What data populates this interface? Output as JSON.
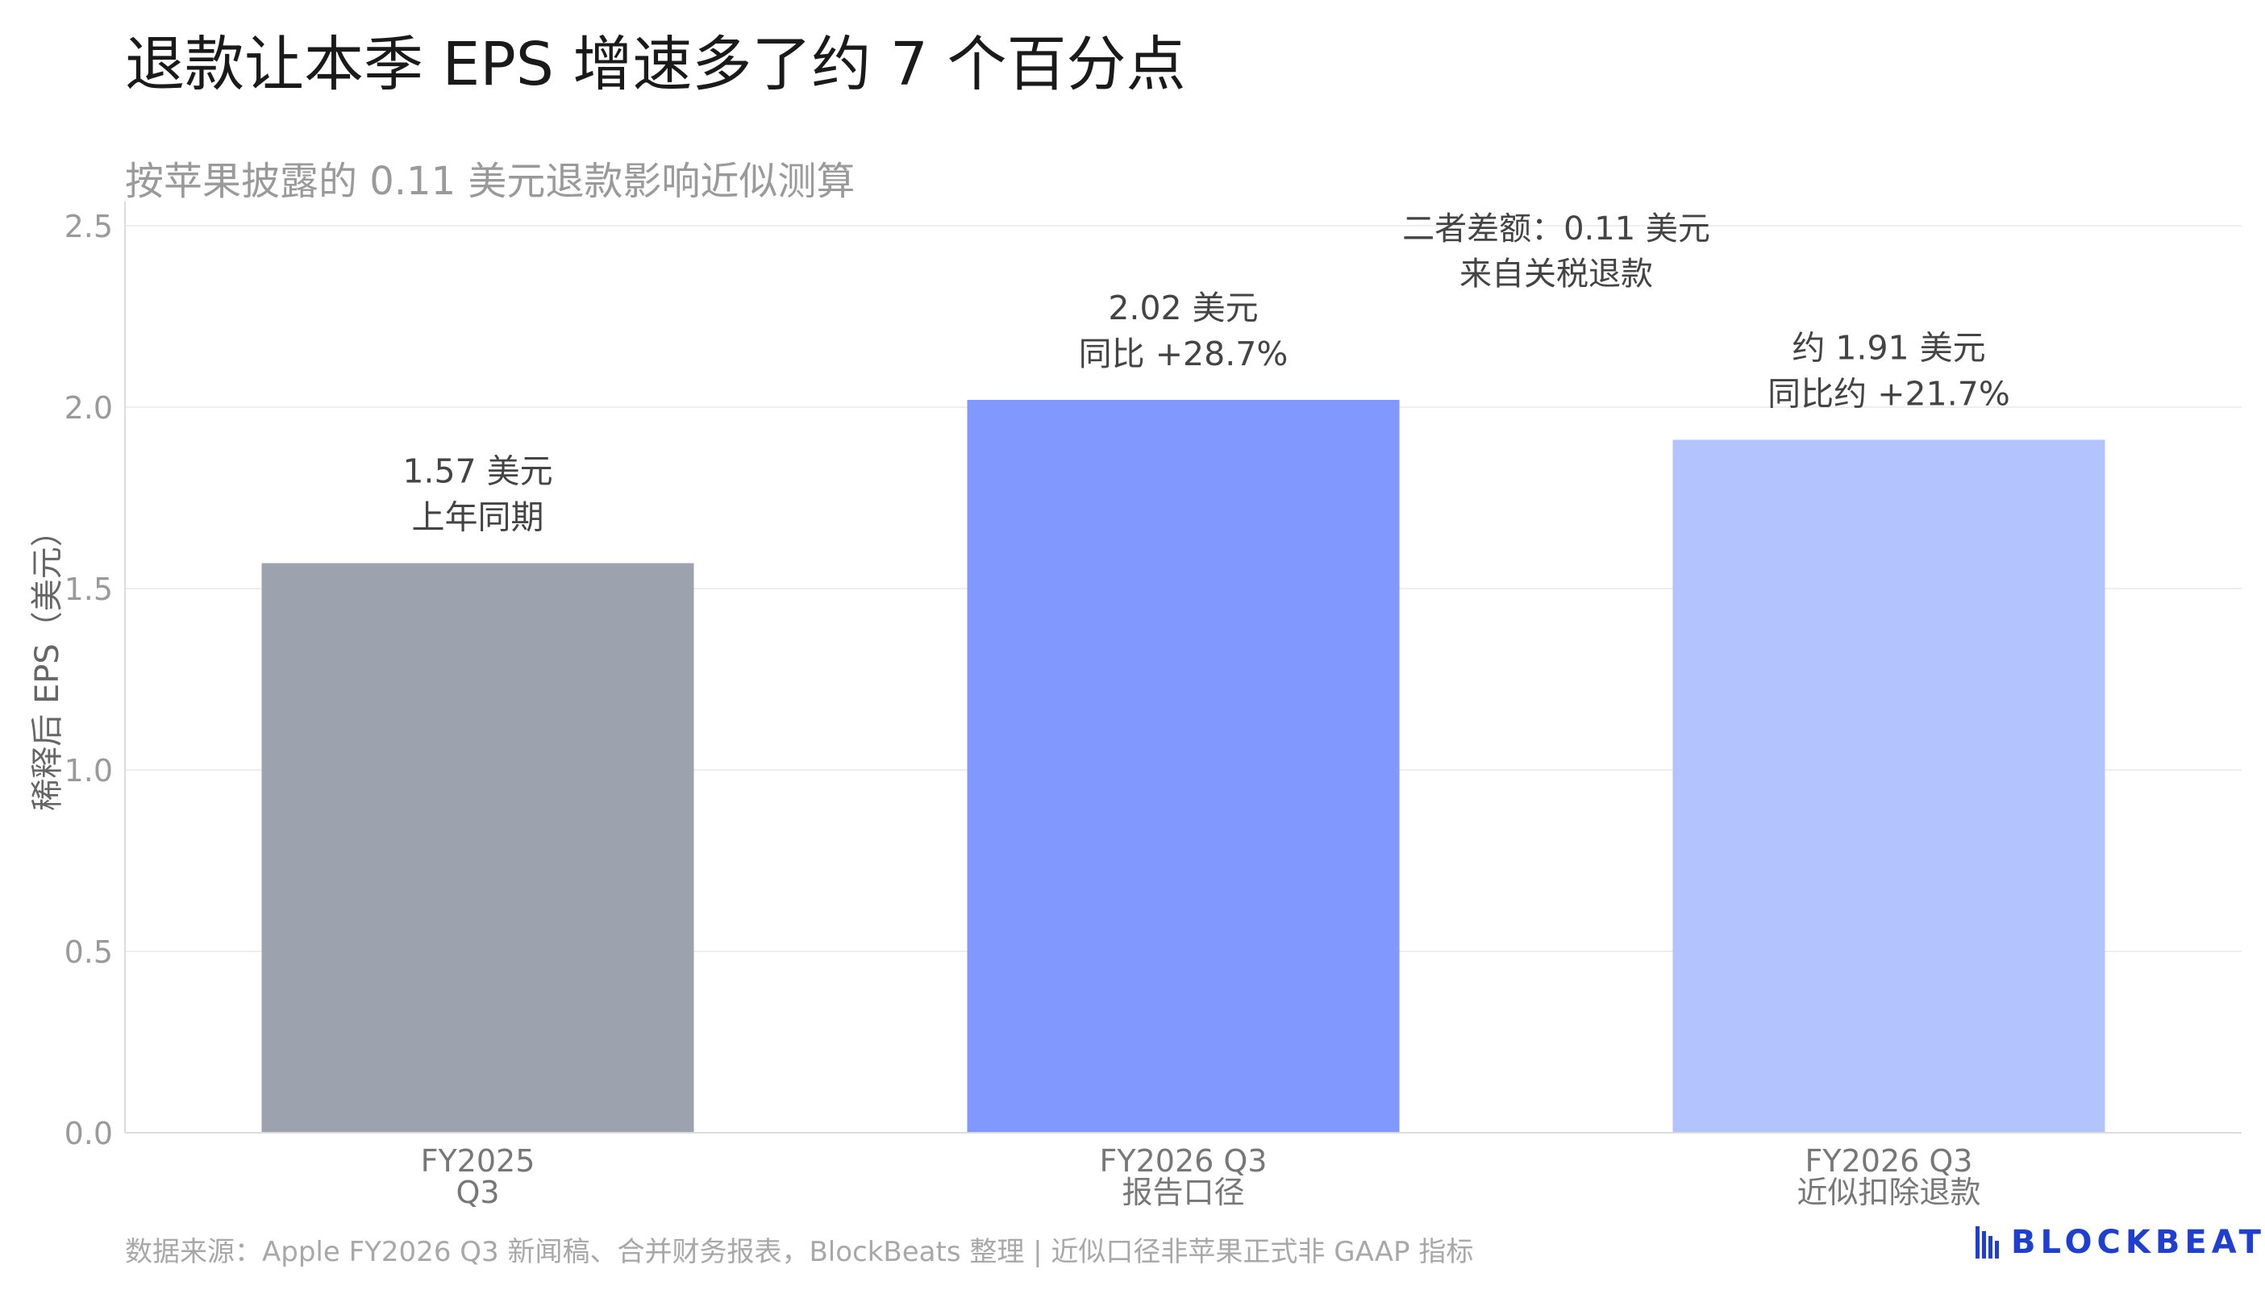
{
  "title": "退款让本季 EPS 增速多了约 7 个百分点",
  "subtitle": "按苹果披露的 0.11 美元退款影响近似测算",
  "source": "数据来源：Apple FY2026 Q3 新闻稿、合并财务报表，BlockBeats 整理 | 近似口径非苹果正式非 GAAP 指标",
  "logo": {
    "text": "BLOCKBEATS",
    "icon": "blockbeats-logo-icon",
    "color": "#1f3fd1"
  },
  "chart_data": {
    "type": "bar",
    "ylabel": "稀释后 EPS（美元）",
    "ylim": [
      0,
      2.5
    ],
    "yticks": [
      "0.0",
      "0.5",
      "1.0",
      "1.5",
      "2.0",
      "2.5"
    ],
    "grid": true,
    "categories": [
      {
        "line1": "FY2025",
        "line2": "Q3"
      },
      {
        "line1": "FY2026 Q3",
        "line2": "报告口径"
      },
      {
        "line1": "FY2026 Q3",
        "line2": "近似扣除退款"
      }
    ],
    "values": [
      1.57,
      2.02,
      1.91
    ],
    "colors": [
      "#9ca3af",
      "#8199fe",
      "#b3c3fd"
    ],
    "data_labels": [
      {
        "line1": "1.57 美元",
        "line2": "上年同期"
      },
      {
        "line1": "2.02 美元",
        "line2": "同比 +28.7%"
      },
      {
        "line1": "约 1.91 美元",
        "line2": "同比约 +21.7%"
      }
    ],
    "annotation": {
      "line1": "二者差额：0.11 美元",
      "line2": "来自关税退款"
    }
  }
}
